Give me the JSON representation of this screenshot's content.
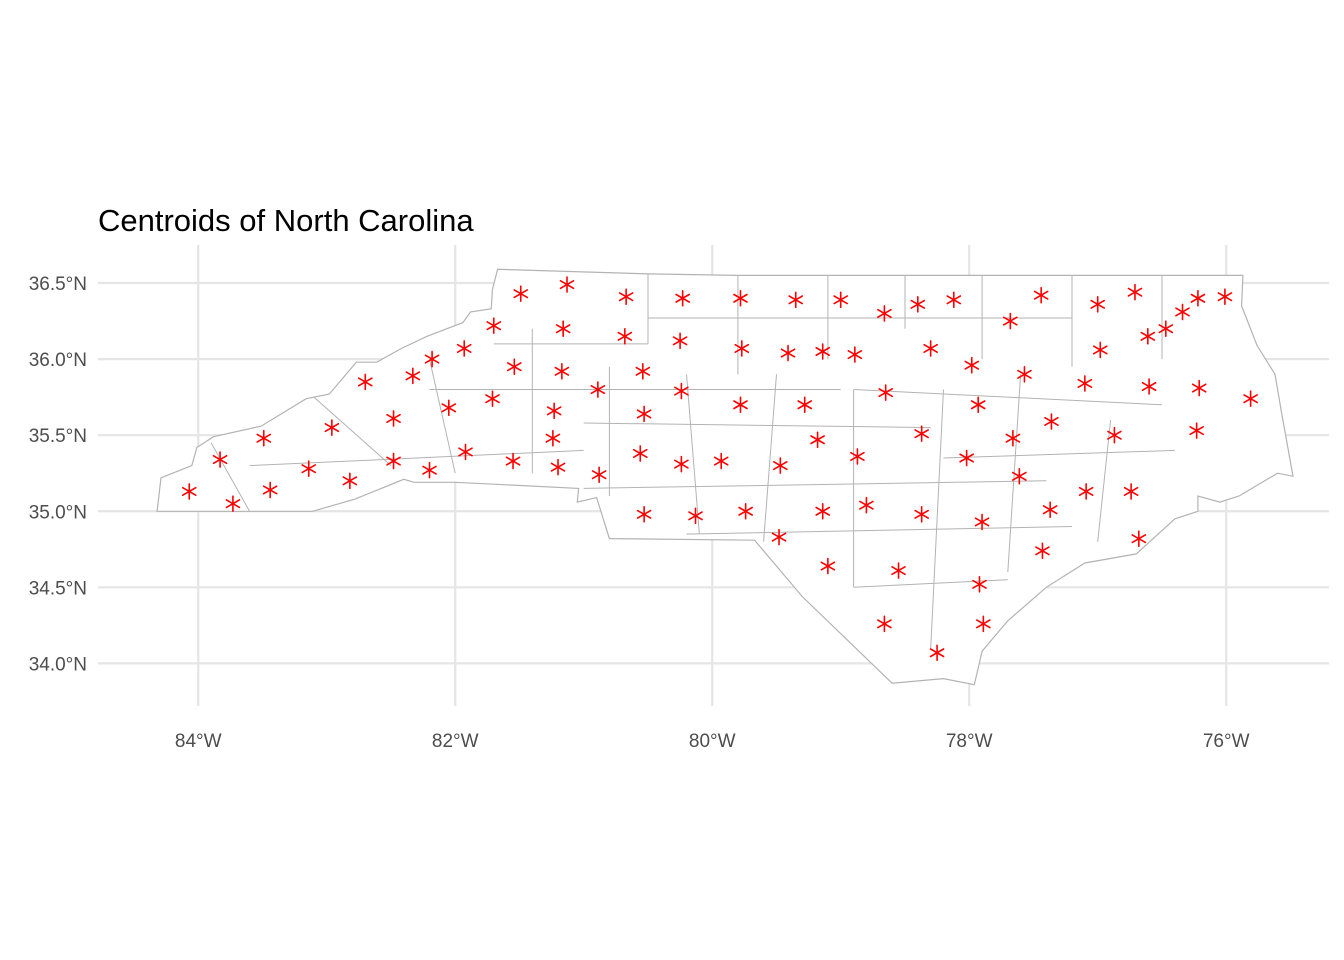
{
  "chart_data": {
    "type": "scatter",
    "title": "Centroids of North Carolina",
    "xlabel": "",
    "ylabel": "",
    "xlim": [
      -84.78,
      -75.2
    ],
    "ylim": [
      33.72,
      36.75
    ],
    "grid": true,
    "x_ticks": [
      {
        "value": -84,
        "label": "84°W"
      },
      {
        "value": -82,
        "label": "82°W"
      },
      {
        "value": -80,
        "label": "80°W"
      },
      {
        "value": -78,
        "label": "78°W"
      },
      {
        "value": -76,
        "label": "76°W"
      }
    ],
    "y_ticks": [
      {
        "value": 34.0,
        "label": "34.0°N"
      },
      {
        "value": 34.5,
        "label": "34.5°N"
      },
      {
        "value": 35.0,
        "label": "35.0°N"
      },
      {
        "value": 35.5,
        "label": "35.5°N"
      },
      {
        "value": 36.0,
        "label": "36.0°N"
      },
      {
        "value": 36.5,
        "label": "36.5°N"
      }
    ],
    "colors": {
      "marker": "#ff0000",
      "boundary": "#b3b3b3",
      "grid": "#e5e5e5",
      "tick_text": "#4d4d4d"
    },
    "marker_symbol": "asterisk",
    "points": [
      [
        -81.49,
        36.43
      ],
      [
        -81.13,
        36.49
      ],
      [
        -80.67,
        36.41
      ],
      [
        -80.23,
        36.4
      ],
      [
        -79.78,
        36.4
      ],
      [
        -79.35,
        36.39
      ],
      [
        -79.0,
        36.39
      ],
      [
        -78.66,
        36.3
      ],
      [
        -78.4,
        36.36
      ],
      [
        -78.12,
        36.39
      ],
      [
        -77.44,
        36.42
      ],
      [
        -77.0,
        36.36
      ],
      [
        -76.71,
        36.44
      ],
      [
        -76.22,
        36.4
      ],
      [
        -76.01,
        36.41
      ],
      [
        -76.34,
        36.31
      ],
      [
        -76.47,
        36.2
      ],
      [
        -76.61,
        36.15
      ],
      [
        -77.68,
        36.25
      ],
      [
        -81.7,
        36.22
      ],
      [
        -81.16,
        36.2
      ],
      [
        -80.68,
        36.15
      ],
      [
        -80.25,
        36.12
      ],
      [
        -79.77,
        36.07
      ],
      [
        -79.41,
        36.04
      ],
      [
        -79.14,
        36.05
      ],
      [
        -78.89,
        36.03
      ],
      [
        -78.3,
        36.07
      ],
      [
        -77.98,
        35.96
      ],
      [
        -77.57,
        35.9
      ],
      [
        -76.98,
        36.06
      ],
      [
        -77.1,
        35.84
      ],
      [
        -76.6,
        35.82
      ],
      [
        -76.21,
        35.81
      ],
      [
        -75.81,
        35.74
      ],
      [
        -81.93,
        36.07
      ],
      [
        -82.18,
        36.0
      ],
      [
        -82.33,
        35.89
      ],
      [
        -82.7,
        35.85
      ],
      [
        -81.54,
        35.95
      ],
      [
        -81.17,
        35.92
      ],
      [
        -80.89,
        35.8
      ],
      [
        -80.54,
        35.92
      ],
      [
        -80.24,
        35.79
      ],
      [
        -79.78,
        35.7
      ],
      [
        -79.28,
        35.7
      ],
      [
        -78.65,
        35.78
      ],
      [
        -77.93,
        35.7
      ],
      [
        -76.87,
        35.5
      ],
      [
        -77.36,
        35.59
      ],
      [
        -76.23,
        35.53
      ],
      [
        -77.66,
        35.48
      ],
      [
        -78.37,
        35.51
      ],
      [
        -78.02,
        35.35
      ],
      [
        -81.71,
        35.74
      ],
      [
        -82.05,
        35.68
      ],
      [
        -82.48,
        35.61
      ],
      [
        -82.96,
        35.55
      ],
      [
        -83.49,
        35.48
      ],
      [
        -81.23,
        35.66
      ],
      [
        -80.53,
        35.64
      ],
      [
        -81.24,
        35.48
      ],
      [
        -80.56,
        35.38
      ],
      [
        -80.24,
        35.31
      ],
      [
        -79.93,
        35.33
      ],
      [
        -79.47,
        35.3
      ],
      [
        -79.18,
        35.47
      ],
      [
        -78.87,
        35.36
      ],
      [
        -77.61,
        35.23
      ],
      [
        -77.09,
        35.13
      ],
      [
        -76.74,
        35.13
      ],
      [
        -77.37,
        35.01
      ],
      [
        -78.37,
        34.98
      ],
      [
        -78.8,
        35.04
      ],
      [
        -79.14,
        35.0
      ],
      [
        -79.74,
        35.0
      ],
      [
        -80.13,
        34.97
      ],
      [
        -80.53,
        34.98
      ],
      [
        -80.88,
        35.24
      ],
      [
        -81.2,
        35.29
      ],
      [
        -81.55,
        35.33
      ],
      [
        -81.92,
        35.39
      ],
      [
        -82.2,
        35.27
      ],
      [
        -82.48,
        35.33
      ],
      [
        -82.82,
        35.2
      ],
      [
        -83.14,
        35.28
      ],
      [
        -83.44,
        35.14
      ],
      [
        -83.73,
        35.05
      ],
      [
        -83.83,
        35.34
      ],
      [
        -84.07,
        35.13
      ],
      [
        -79.48,
        34.83
      ],
      [
        -79.1,
        34.64
      ],
      [
        -78.55,
        34.61
      ],
      [
        -77.9,
        34.93
      ],
      [
        -77.43,
        34.74
      ],
      [
        -76.68,
        34.82
      ],
      [
        -78.66,
        34.26
      ],
      [
        -77.92,
        34.52
      ],
      [
        -77.89,
        34.26
      ],
      [
        -78.25,
        34.07
      ]
    ]
  },
  "map": {
    "outline": [
      [
        -84.32,
        35.0
      ],
      [
        -84.29,
        35.22
      ],
      [
        -84.05,
        35.3
      ],
      [
        -84.01,
        35.42
      ],
      [
        -83.88,
        35.49
      ],
      [
        -83.51,
        35.56
      ],
      [
        -83.16,
        35.74
      ],
      [
        -82.98,
        35.77
      ],
      [
        -82.77,
        35.98
      ],
      [
        -82.61,
        35.98
      ],
      [
        -82.42,
        36.07
      ],
      [
        -82.22,
        36.15
      ],
      [
        -81.94,
        36.24
      ],
      [
        -81.88,
        36.31
      ],
      [
        -81.72,
        36.33
      ],
      [
        -81.71,
        36.46
      ],
      [
        -81.67,
        36.59
      ],
      [
        -80.5,
        36.56
      ],
      [
        -79.8,
        36.55
      ],
      [
        -78.5,
        36.55
      ],
      [
        -77.0,
        36.55
      ],
      [
        -76.0,
        36.55
      ],
      [
        -75.87,
        36.55
      ],
      [
        -75.88,
        36.35
      ],
      [
        -75.76,
        36.09
      ],
      [
        -75.62,
        35.9
      ],
      [
        -75.57,
        35.65
      ],
      [
        -75.48,
        35.23
      ],
      [
        -75.6,
        35.25
      ],
      [
        -75.9,
        35.1
      ],
      [
        -76.05,
        35.06
      ],
      [
        -76.22,
        35.1
      ],
      [
        -76.22,
        35.0
      ],
      [
        -76.4,
        34.95
      ],
      [
        -76.7,
        34.72
      ],
      [
        -77.1,
        34.66
      ],
      [
        -77.4,
        34.5
      ],
      [
        -77.7,
        34.28
      ],
      [
        -77.9,
        34.08
      ],
      [
        -77.96,
        33.86
      ],
      [
        -78.2,
        33.9
      ],
      [
        -78.6,
        33.87
      ],
      [
        -79.3,
        34.44
      ],
      [
        -79.67,
        34.81
      ],
      [
        -80.8,
        34.82
      ],
      [
        -80.9,
        35.09
      ],
      [
        -81.05,
        35.06
      ],
      [
        -81.04,
        35.15
      ],
      [
        -82.0,
        35.19
      ],
      [
        -82.32,
        35.19
      ],
      [
        -82.4,
        35.21
      ],
      [
        -82.78,
        35.08
      ],
      [
        -83.11,
        35.0
      ],
      [
        -83.62,
        35.0
      ],
      [
        -84.32,
        35.0
      ]
    ],
    "county_lines": [
      [
        [
          -80.5,
          36.56
        ],
        [
          -80.5,
          36.1
        ]
      ],
      [
        [
          -79.8,
          36.55
        ],
        [
          -79.8,
          35.9
        ]
      ],
      [
        [
          -79.1,
          36.55
        ],
        [
          -79.1,
          36.0
        ]
      ],
      [
        [
          -78.5,
          36.55
        ],
        [
          -78.5,
          36.2
        ]
      ],
      [
        [
          -77.9,
          36.55
        ],
        [
          -77.9,
          36.0
        ]
      ],
      [
        [
          -77.2,
          36.55
        ],
        [
          -77.2,
          35.95
        ]
      ],
      [
        [
          -76.5,
          36.55
        ],
        [
          -76.5,
          36.0
        ]
      ],
      [
        [
          -81.7,
          36.1
        ],
        [
          -80.5,
          36.1
        ]
      ],
      [
        [
          -80.5,
          36.27
        ],
        [
          -77.2,
          36.27
        ]
      ],
      [
        [
          -82.2,
          35.8
        ],
        [
          -79.0,
          35.8
        ]
      ],
      [
        [
          -78.9,
          35.8
        ],
        [
          -76.5,
          35.7
        ]
      ],
      [
        [
          -83.6,
          35.3
        ],
        [
          -81.0,
          35.4
        ]
      ],
      [
        [
          -81.0,
          35.58
        ],
        [
          -78.3,
          35.55
        ]
      ],
      [
        [
          -78.2,
          35.35
        ],
        [
          -76.4,
          35.4
        ]
      ],
      [
        [
          -81.0,
          35.15
        ],
        [
          -77.4,
          35.2
        ]
      ],
      [
        [
          -80.2,
          34.85
        ],
        [
          -77.2,
          34.9
        ]
      ],
      [
        [
          -83.1,
          35.75
        ],
        [
          -82.5,
          35.3
        ]
      ],
      [
        [
          -82.2,
          36.0
        ],
        [
          -82.0,
          35.25
        ]
      ],
      [
        [
          -81.4,
          36.2
        ],
        [
          -81.4,
          35.25
        ]
      ],
      [
        [
          -80.8,
          35.95
        ],
        [
          -80.8,
          35.1
        ]
      ],
      [
        [
          -80.2,
          35.9
        ],
        [
          -80.1,
          34.85
        ]
      ],
      [
        [
          -79.5,
          35.9
        ],
        [
          -79.6,
          34.8
        ]
      ],
      [
        [
          -78.9,
          35.8
        ],
        [
          -78.9,
          34.5
        ]
      ],
      [
        [
          -78.2,
          35.8
        ],
        [
          -78.3,
          34.1
        ]
      ],
      [
        [
          -77.6,
          35.9
        ],
        [
          -77.7,
          34.6
        ]
      ],
      [
        [
          -76.9,
          35.6
        ],
        [
          -77.0,
          34.8
        ]
      ],
      [
        [
          -83.9,
          35.45
        ],
        [
          -83.6,
          35.0
        ]
      ],
      [
        [
          -78.9,
          34.5
        ],
        [
          -77.7,
          34.55
        ]
      ]
    ]
  }
}
